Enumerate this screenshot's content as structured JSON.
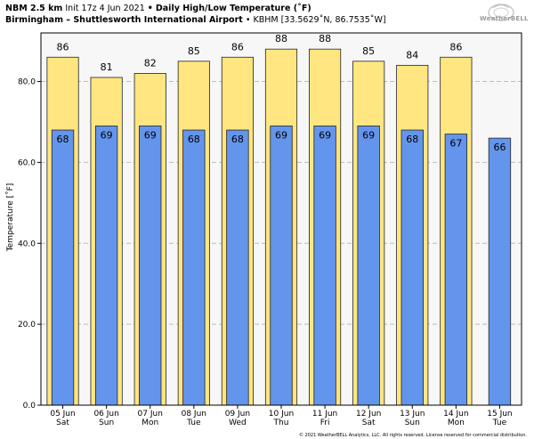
{
  "header": {
    "line1_model": "NBM 2.5 km",
    "line1_init": "Init 17z 4 Jun 2021",
    "line1_sep": "•",
    "line1_title": "Daily High/Low Temperature (˚F)",
    "line2_station": "Birmingham – Shuttlesworth International Airport",
    "line2_sep": "•",
    "line2_code": "KBHM [33.5629˚N, 86.7535˚W]"
  },
  "logo": {
    "text": "WeatherBELL"
  },
  "copyright": "© 2021 WeatherBELL Analytics, LLC. All rights reserved. License reserved for commercial distribution.",
  "chart_data": {
    "type": "bar",
    "ylabel": "Temperature [˚F]",
    "xlabel": "",
    "ylim": [
      0,
      92
    ],
    "yticks": [
      0.0,
      20.0,
      40.0,
      60.0,
      80.0
    ],
    "ytick_labels": [
      "0.0",
      "20.0",
      "40.0",
      "60.0",
      "80.0"
    ],
    "grid": "horizontal-dashed",
    "categories": [
      "05 Jun",
      "06 Jun",
      "07 Jun",
      "08 Jun",
      "09 Jun",
      "10 Jun",
      "11 Jun",
      "12 Jun",
      "13 Jun",
      "14 Jun",
      "15 Jun"
    ],
    "weekdays": [
      "Sat",
      "Sun",
      "Mon",
      "Tue",
      "Wed",
      "Thu",
      "Fri",
      "Sat",
      "Sun",
      "Mon",
      "Tue"
    ],
    "series": [
      {
        "name": "High",
        "color": "#ffe680",
        "values": [
          86,
          81,
          82,
          85,
          86,
          88,
          88,
          85,
          84,
          86,
          null
        ]
      },
      {
        "name": "Low",
        "color": "#6495ed",
        "values": [
          68,
          69,
          69,
          68,
          68,
          69,
          69,
          69,
          68,
          67,
          66
        ]
      }
    ],
    "high_labels": [
      "86",
      "81",
      "82",
      "85",
      "86",
      "88",
      "88",
      "85",
      "84",
      "86",
      ""
    ],
    "low_labels": [
      "68",
      "69",
      "69",
      "68",
      "68",
      "69",
      "69",
      "69",
      "68",
      "67",
      "66"
    ]
  }
}
